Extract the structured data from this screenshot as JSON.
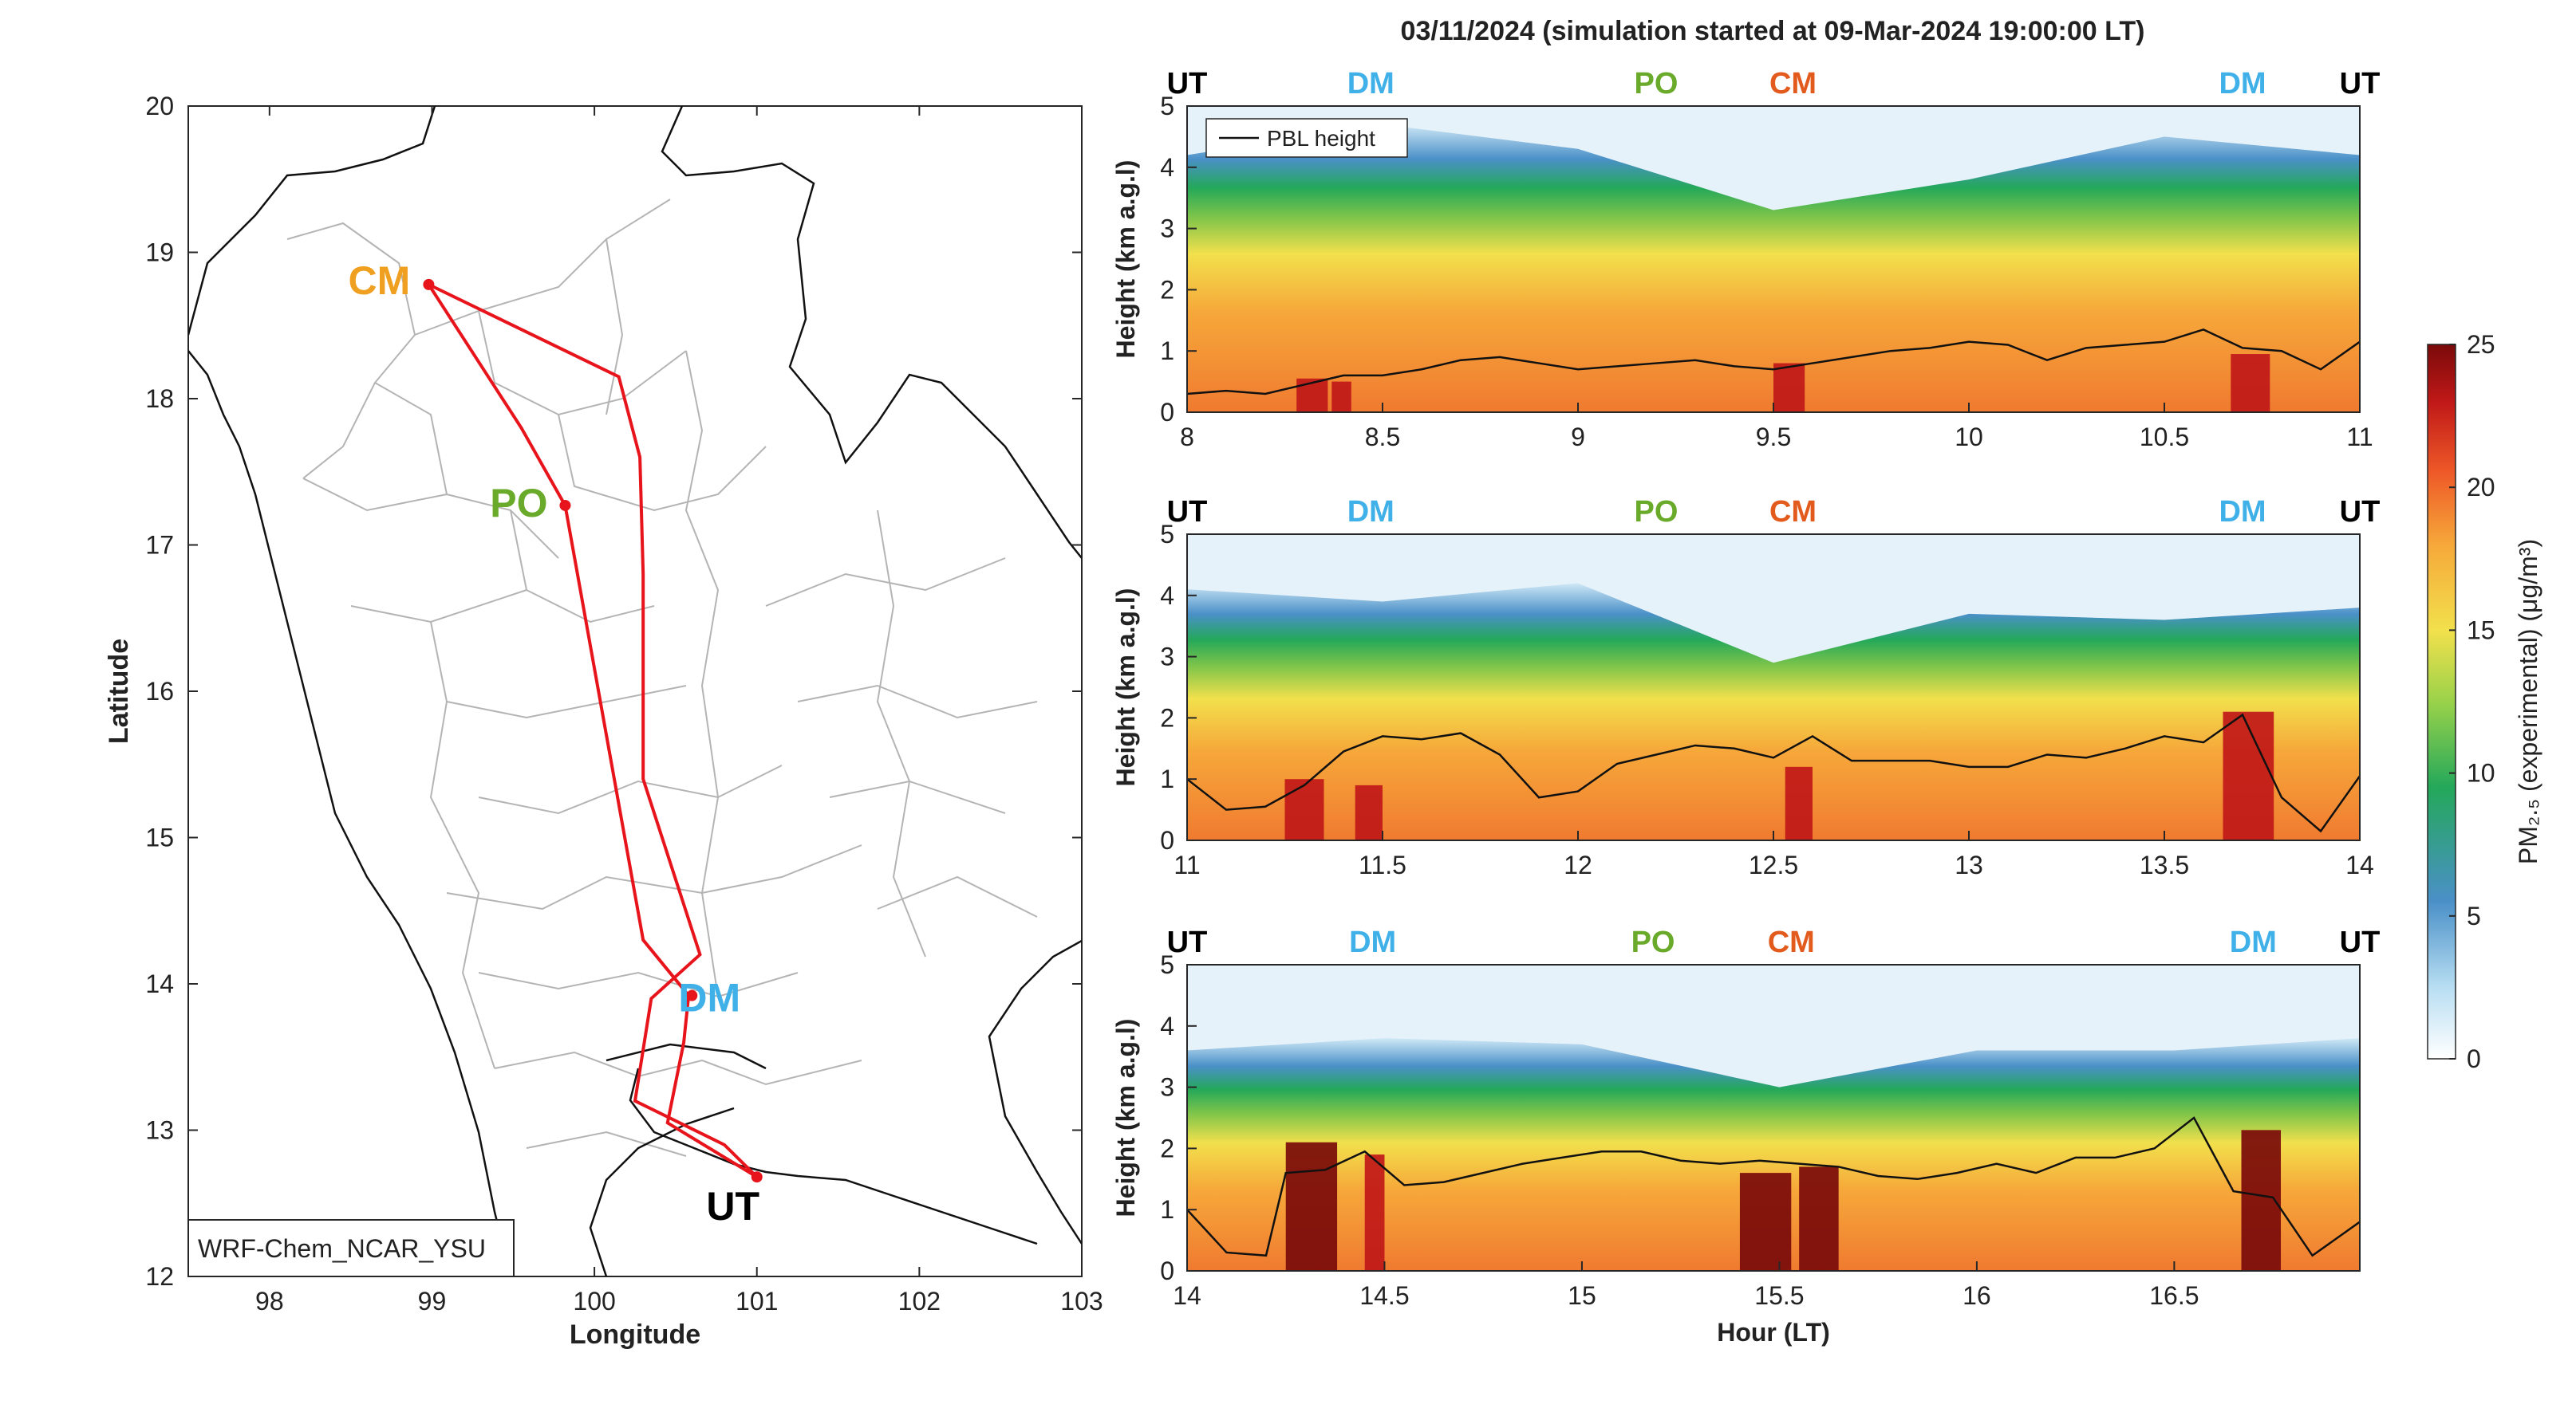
{
  "figure": {
    "title": "03/11/2024 (simulation started at 09-Mar-2024 19:00:00 LT)"
  },
  "map": {
    "xlabel": "Longitude",
    "ylabel": "Latitude",
    "xlim": [
      97.5,
      103
    ],
    "ylim": [
      12,
      20
    ],
    "xticks": [
      98,
      99,
      100,
      101,
      102,
      103
    ],
    "yticks": [
      12,
      13,
      14,
      15,
      16,
      17,
      18,
      19,
      20
    ],
    "model_label": "WRF-Chem_NCAR_YSU",
    "route_color": "#e8141c",
    "stations": [
      {
        "name": "CM",
        "lon": 98.98,
        "lat": 18.78,
        "color": "#f0a020"
      },
      {
        "name": "PO",
        "lon": 99.82,
        "lat": 17.27,
        "color": "#6aaa2a"
      },
      {
        "name": "DM",
        "lon": 100.6,
        "lat": 13.92,
        "color": "#40b0e8"
      },
      {
        "name": "UT",
        "lon": 101.0,
        "lat": 12.68,
        "color": "#000000"
      }
    ],
    "route_west": [
      [
        101.0,
        12.68
      ],
      [
        100.45,
        13.05
      ],
      [
        100.55,
        13.6
      ],
      [
        100.58,
        13.92
      ],
      [
        100.3,
        14.3
      ],
      [
        99.82,
        17.27
      ],
      [
        99.55,
        17.8
      ],
      [
        98.98,
        18.78
      ]
    ],
    "route_east": [
      [
        98.98,
        18.78
      ],
      [
        100.15,
        18.15
      ],
      [
        100.28,
        17.6
      ],
      [
        100.3,
        16.8
      ],
      [
        100.3,
        15.4
      ],
      [
        100.65,
        14.2
      ],
      [
        100.35,
        13.9
      ],
      [
        100.25,
        13.2
      ],
      [
        100.8,
        12.9
      ],
      [
        101.0,
        12.68
      ]
    ]
  },
  "chart_data": [
    {
      "type": "heatmap",
      "title": "",
      "xlabel": "",
      "ylabel": "Height (km a.g.l)",
      "xlim": [
        8,
        11
      ],
      "ylim": [
        0,
        5
      ],
      "xticks": [
        "8",
        "8.5",
        "9",
        "9.5",
        "10",
        "10.5",
        "11"
      ],
      "yticks": [
        "0",
        "1",
        "2",
        "3",
        "4",
        "5"
      ],
      "legend": {
        "entries": [
          "PBL height"
        ],
        "position": "top-left"
      },
      "station_markers": [
        {
          "label": "UT",
          "x": 8.0
        },
        {
          "label": "DM",
          "x": 8.47
        },
        {
          "label": "PO",
          "x": 9.2
        },
        {
          "label": "CM",
          "x": 9.55
        },
        {
          "label": "DM",
          "x": 10.7
        },
        {
          "label": "UT",
          "x": 11.0
        }
      ],
      "pbl_height": {
        "x": [
          8.0,
          8.1,
          8.2,
          8.3,
          8.4,
          8.5,
          8.6,
          8.7,
          8.8,
          8.9,
          9.0,
          9.1,
          9.2,
          9.3,
          9.4,
          9.5,
          9.6,
          9.7,
          9.8,
          9.9,
          10.0,
          10.1,
          10.2,
          10.3,
          10.4,
          10.5,
          10.6,
          10.7,
          10.8,
          10.9,
          11.0
        ],
        "y": [
          0.3,
          0.35,
          0.3,
          0.45,
          0.6,
          0.6,
          0.7,
          0.85,
          0.9,
          0.8,
          0.7,
          0.75,
          0.8,
          0.85,
          0.75,
          0.7,
          0.8,
          0.9,
          1.0,
          1.05,
          1.15,
          1.1,
          0.85,
          1.05,
          1.1,
          1.15,
          1.35,
          1.05,
          1.0,
          0.7,
          1.15
        ]
      },
      "concentration_profile": {
        "x": [
          8.0,
          8.5,
          9.0,
          9.5,
          10.0,
          10.5,
          11.0
        ],
        "layer_top_km": [
          3.3,
          3.8,
          3.4,
          2.4,
          2.9,
          3.6,
          3.3
        ]
      },
      "hotspots": [
        {
          "x": [
            8.28,
            8.36
          ],
          "y": [
            0,
            0.55
          ],
          "value": 23
        },
        {
          "x": [
            8.37,
            8.42
          ],
          "y": [
            0,
            0.5
          ],
          "value": 23
        },
        {
          "x": [
            9.5,
            9.58
          ],
          "y": [
            0,
            0.8
          ],
          "value": 22
        },
        {
          "x": [
            10.67,
            10.77
          ],
          "y": [
            0,
            0.95
          ],
          "value": 23
        }
      ]
    },
    {
      "type": "heatmap",
      "title": "",
      "xlabel": "",
      "ylabel": "Height (km a.g.l)",
      "xlim": [
        11,
        14
      ],
      "ylim": [
        0,
        5
      ],
      "xticks": [
        "11",
        "11.5",
        "12",
        "12.5",
        "13",
        "13.5",
        "14"
      ],
      "yticks": [
        "0",
        "1",
        "2",
        "3",
        "4",
        "5"
      ],
      "station_markers": [
        {
          "label": "UT",
          "x": 11.0
        },
        {
          "label": "DM",
          "x": 11.47
        },
        {
          "label": "PO",
          "x": 12.2
        },
        {
          "label": "CM",
          "x": 12.55
        },
        {
          "label": "DM",
          "x": 13.7
        },
        {
          "label": "UT",
          "x": 14.0
        }
      ],
      "pbl_height": {
        "x": [
          11.0,
          11.1,
          11.2,
          11.3,
          11.4,
          11.5,
          11.6,
          11.7,
          11.8,
          11.9,
          12.0,
          12.1,
          12.2,
          12.3,
          12.4,
          12.5,
          12.6,
          12.7,
          12.8,
          12.9,
          13.0,
          13.1,
          13.2,
          13.3,
          13.4,
          13.5,
          13.6,
          13.7,
          13.8,
          13.9,
          14.0
        ],
        "y": [
          1.0,
          0.5,
          0.55,
          0.9,
          1.45,
          1.7,
          1.65,
          1.75,
          1.4,
          0.7,
          0.8,
          1.25,
          1.4,
          1.55,
          1.5,
          1.35,
          1.7,
          1.3,
          1.3,
          1.3,
          1.2,
          1.2,
          1.4,
          1.35,
          1.5,
          1.7,
          1.6,
          2.05,
          0.7,
          0.15,
          1.05
        ]
      },
      "concentration_profile": {
        "x": [
          11.0,
          11.5,
          12.0,
          12.5,
          13.0,
          13.5,
          14.0
        ],
        "layer_top_km": [
          3.2,
          3.0,
          3.3,
          2.0,
          2.8,
          2.7,
          2.9
        ]
      },
      "hotspots": [
        {
          "x": [
            11.25,
            11.35
          ],
          "y": [
            0,
            1.0
          ],
          "value": 23
        },
        {
          "x": [
            11.43,
            11.5
          ],
          "y": [
            0,
            0.9
          ],
          "value": 22
        },
        {
          "x": [
            12.53,
            12.6
          ],
          "y": [
            0,
            1.2
          ],
          "value": 21
        },
        {
          "x": [
            13.65,
            13.78
          ],
          "y": [
            0,
            2.1
          ],
          "value": 23
        }
      ]
    },
    {
      "type": "heatmap",
      "title": "",
      "xlabel": "Hour (LT)",
      "ylabel": "Height (km a.g.l)",
      "xlim": [
        14,
        16.97
      ],
      "ylim": [
        0,
        5
      ],
      "xticks": [
        "14",
        "14.5",
        "15",
        "15.5",
        "16",
        "16.5"
      ],
      "yticks": [
        "0",
        "1",
        "2",
        "3",
        "4",
        "5"
      ],
      "station_markers": [
        {
          "label": "UT",
          "x": 14.0
        },
        {
          "label": "DM",
          "x": 14.47
        },
        {
          "label": "PO",
          "x": 15.18
        },
        {
          "label": "CM",
          "x": 15.53
        },
        {
          "label": "DM",
          "x": 16.7
        },
        {
          "label": "UT",
          "x": 16.97
        }
      ],
      "pbl_height": {
        "x": [
          14.0,
          14.1,
          14.2,
          14.25,
          14.35,
          14.45,
          14.55,
          14.65,
          14.75,
          14.85,
          14.95,
          15.05,
          15.15,
          15.25,
          15.35,
          15.45,
          15.55,
          15.65,
          15.75,
          15.85,
          15.95,
          16.05,
          16.15,
          16.25,
          16.35,
          16.45,
          16.55,
          16.65,
          16.75,
          16.85,
          16.97
        ],
        "y": [
          1.0,
          0.3,
          0.25,
          1.6,
          1.65,
          1.95,
          1.4,
          1.45,
          1.6,
          1.75,
          1.85,
          1.95,
          1.95,
          1.8,
          1.75,
          1.8,
          1.75,
          1.7,
          1.55,
          1.5,
          1.6,
          1.75,
          1.6,
          1.85,
          1.85,
          2.0,
          2.5,
          1.3,
          1.2,
          0.25,
          0.8
        ]
      },
      "concentration_profile": {
        "x": [
          14.0,
          14.5,
          15.0,
          15.5,
          16.0,
          16.5,
          16.97
        ],
        "layer_top_km": [
          2.7,
          2.9,
          2.8,
          2.1,
          2.7,
          2.7,
          2.9
        ]
      },
      "hotspots": [
        {
          "x": [
            14.25,
            14.38
          ],
          "y": [
            0,
            2.1
          ],
          "value": 24
        },
        {
          "x": [
            14.45,
            14.5
          ],
          "y": [
            0,
            1.9
          ],
          "value": 23
        },
        {
          "x": [
            15.4,
            15.53
          ],
          "y": [
            0,
            1.6
          ],
          "value": 24
        },
        {
          "x": [
            15.55,
            15.65
          ],
          "y": [
            0,
            1.7
          ],
          "value": 24
        },
        {
          "x": [
            16.67,
            16.77
          ],
          "y": [
            0,
            2.3
          ],
          "value": 24
        }
      ]
    }
  ],
  "colorbar": {
    "label": "PM₂.₅ (experimental) (μg/m³)",
    "min": 0,
    "max": 25,
    "ticks": [
      "0",
      "5",
      "10",
      "15",
      "20",
      "25"
    ],
    "colors": [
      "#ffffff",
      "#b8def2",
      "#4a90c8",
      "#24a85a",
      "#9ad24a",
      "#f2e04c",
      "#f6a83a",
      "#ee5a28",
      "#c01818",
      "#7a0a0a"
    ]
  }
}
